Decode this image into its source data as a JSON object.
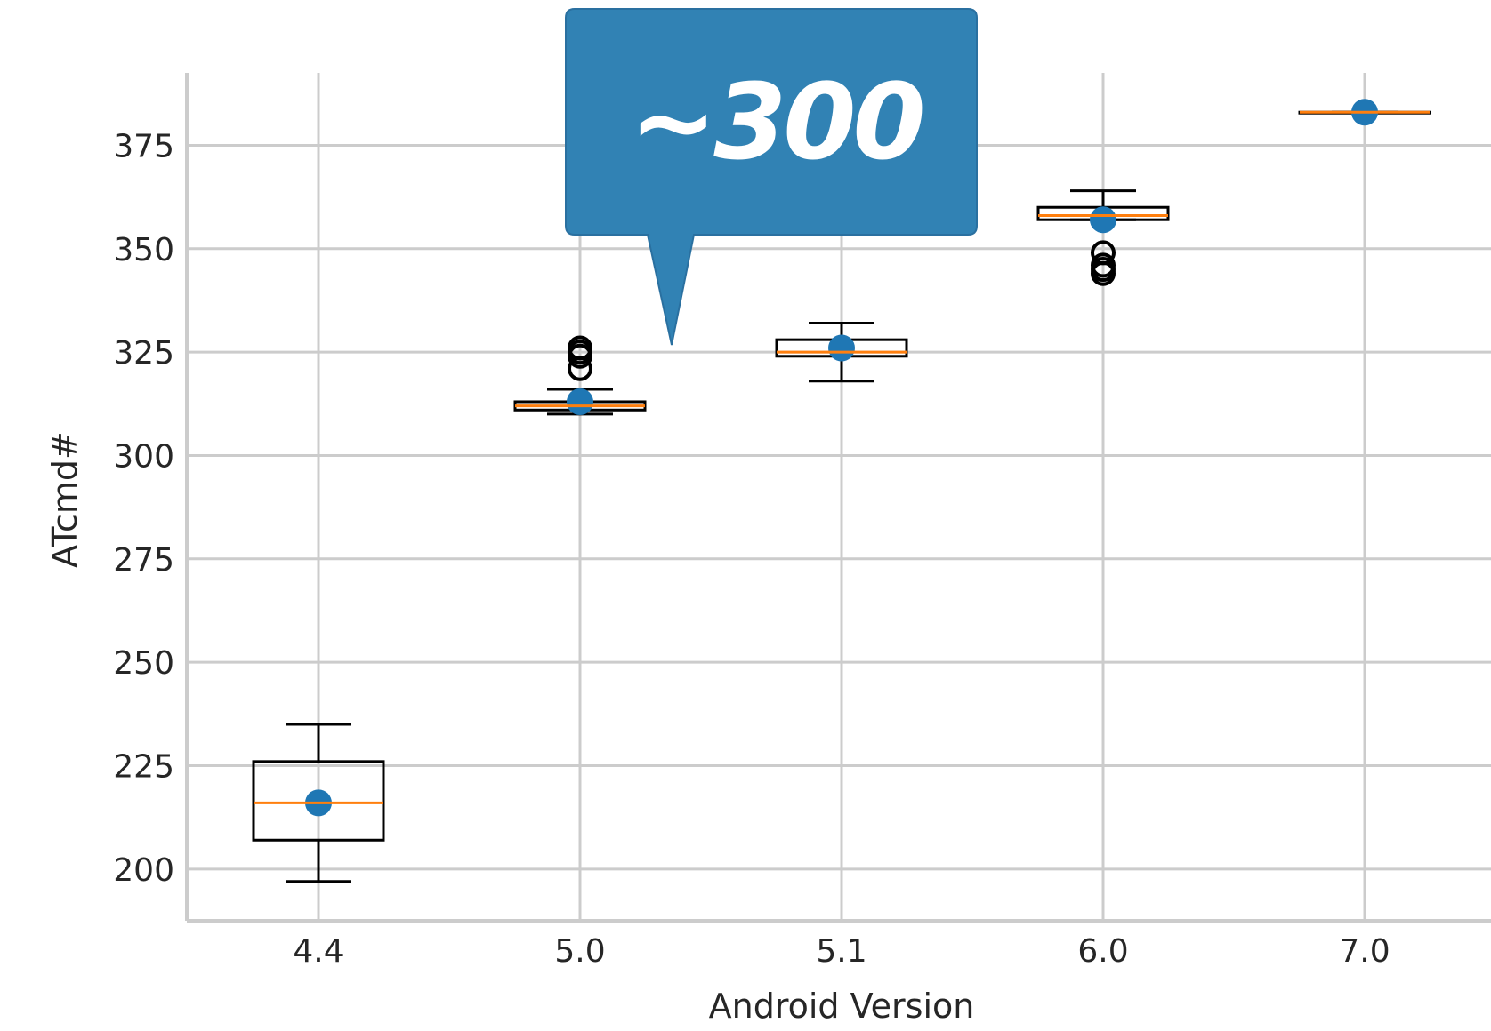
{
  "chart_data": {
    "type": "box",
    "xlabel": "Android Version",
    "ylabel": "ATcmd#",
    "ylim": [
      187.5,
      392.5
    ],
    "yticks": [
      200,
      225,
      250,
      275,
      300,
      325,
      350,
      375
    ],
    "grid": true,
    "categories": [
      "4.4",
      "5.0",
      "5.1",
      "6.0",
      "7.0"
    ],
    "boxes": [
      {
        "category": "4.4",
        "whisker_low": 197,
        "q1": 207,
        "median": 216,
        "q3": 226,
        "whisker_high": 235,
        "mean": 216,
        "outliers": []
      },
      {
        "category": "5.0",
        "whisker_low": 310,
        "q1": 311,
        "median": 312,
        "q3": 313,
        "whisker_high": 316,
        "mean": 313,
        "outliers": [
          321,
          324,
          325,
          326
        ]
      },
      {
        "category": "5.1",
        "whisker_low": 318,
        "q1": 324,
        "median": 325,
        "q3": 328,
        "whisker_high": 332,
        "mean": 326,
        "outliers": []
      },
      {
        "category": "6.0",
        "whisker_low": 357,
        "q1": 357,
        "median": 358,
        "q3": 360,
        "whisker_high": 364,
        "mean": 357,
        "outliers": [
          344,
          345,
          346,
          349
        ]
      },
      {
        "category": "7.0",
        "whisker_low": 383,
        "q1": 383,
        "median": 383,
        "q3": 383,
        "whisker_high": 383,
        "mean": 383,
        "outliers": []
      }
    ],
    "annotation": {
      "text": "~300"
    }
  },
  "colors": {
    "grid": "#cccccc",
    "box": "#000000",
    "median": "#ff7f0e",
    "mean": "#1f77b4",
    "callout": "#3182b4"
  }
}
